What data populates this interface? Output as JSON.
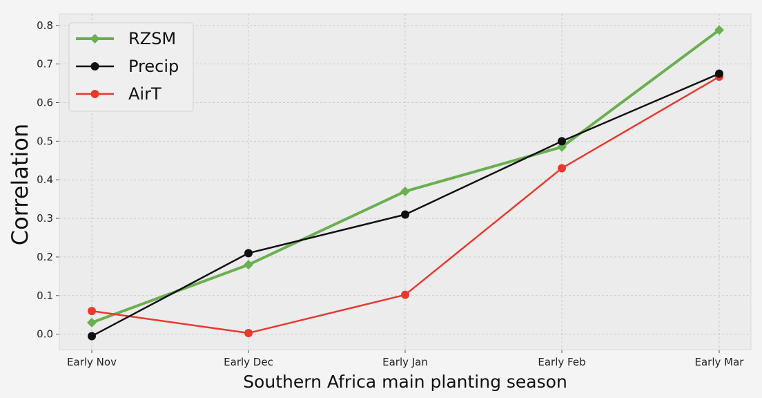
{
  "chart_data": {
    "type": "line",
    "categories": [
      "Early Nov",
      "Early Dec",
      "Early Jan",
      "Early Feb",
      "Early Mar"
    ],
    "series": [
      {
        "name": "RZSM",
        "values": [
          0.03,
          0.18,
          0.37,
          0.485,
          0.788
        ],
        "color": "#6aaf50",
        "marker": "diamond"
      },
      {
        "name": "Precip",
        "values": [
          -0.005,
          0.21,
          0.31,
          0.5,
          0.675
        ],
        "color": "#111111",
        "marker": "circle"
      },
      {
        "name": "AirT",
        "values": [
          0.06,
          0.003,
          0.102,
          0.43,
          0.667
        ],
        "color": "#e8392f",
        "marker": "circle"
      }
    ],
    "title": "",
    "xlabel": "Southern Africa main planting season",
    "ylabel": "Correlation",
    "ylim": [
      -0.04,
      0.83
    ],
    "yticks": [
      "0.0",
      "0.1",
      "0.2",
      "0.3",
      "0.4",
      "0.5",
      "0.6",
      "0.7",
      "0.8"
    ],
    "grid": true,
    "legend_position": "top-left",
    "background_color": "#ececec"
  }
}
